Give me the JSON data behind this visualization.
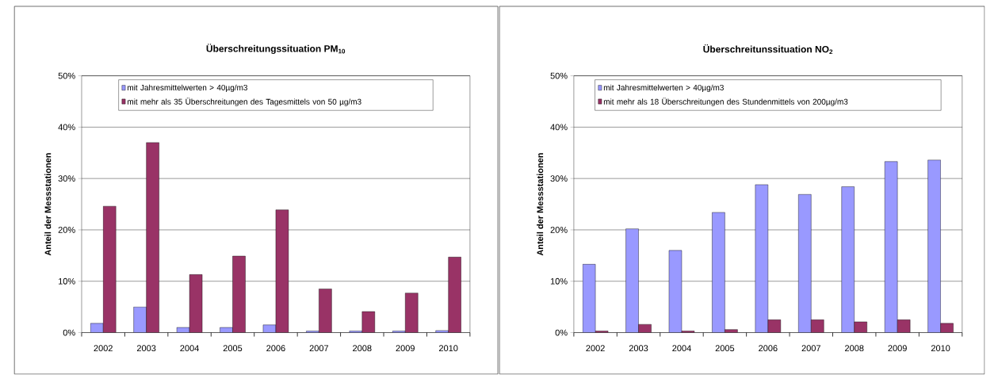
{
  "chart_data": [
    {
      "type": "bar",
      "title": "Überschreitungssituation PM$_{10}$",
      "ylabel": "Anteil der Messstationen",
      "categories": [
        "2002",
        "2003",
        "2004",
        "2005",
        "2006",
        "2007",
        "2008",
        "2009",
        "2010"
      ],
      "series": [
        {
          "name": "mit Jahresmittelwerten > 40µg/m3",
          "color": "#9999ff",
          "values": [
            1.8,
            5.0,
            1.0,
            1.0,
            1.5,
            0.3,
            0.3,
            0.3,
            0.4
          ]
        },
        {
          "name": "mit mehr als 35 Überschreitungen des Tagesmittels von 50 µg/m3",
          "color": "#993366",
          "values": [
            24.6,
            37.0,
            11.3,
            14.9,
            23.9,
            8.5,
            4.1,
            7.7,
            14.7
          ]
        }
      ],
      "ylim": [
        0,
        50
      ],
      "yticks": [
        {
          "value": 0,
          "label": "0%"
        },
        {
          "value": 10,
          "label": "10%"
        },
        {
          "value": 20,
          "label": "20%"
        },
        {
          "value": 30,
          "label": "30%"
        },
        {
          "value": 40,
          "label": "40%"
        },
        {
          "value": 50,
          "label": "50%"
        }
      ],
      "grid": "y",
      "legend": "top"
    },
    {
      "type": "bar",
      "title": "Überschreitunssituation NO$_{2}$",
      "ylabel": "Anteil der Messstationen",
      "categories": [
        "2002",
        "2003",
        "2004",
        "2005",
        "2006",
        "2007",
        "2008",
        "2009",
        "2010"
      ],
      "series": [
        {
          "name": "mit Jahresmittelwerten > 40µg/m3",
          "color": "#9999ff",
          "values": [
            13.3,
            20.2,
            16.0,
            23.4,
            28.8,
            26.9,
            28.4,
            33.3,
            33.6
          ]
        },
        {
          "name": "mit mehr als 18 Überschreitungen des Stundenmittels von 200µg/m3",
          "color": "#993366",
          "values": [
            0.3,
            1.6,
            0.3,
            0.6,
            2.5,
            2.5,
            2.1,
            2.5,
            1.8
          ]
        }
      ],
      "ylim": [
        0,
        50
      ],
      "yticks": [
        {
          "value": 0,
          "label": "0%"
        },
        {
          "value": 10,
          "label": "10%"
        },
        {
          "value": 20,
          "label": "20%"
        },
        {
          "value": 30,
          "label": "30%"
        },
        {
          "value": 40,
          "label": "40%"
        },
        {
          "value": 50,
          "label": "50%"
        }
      ],
      "grid": "y",
      "legend": "top"
    }
  ]
}
